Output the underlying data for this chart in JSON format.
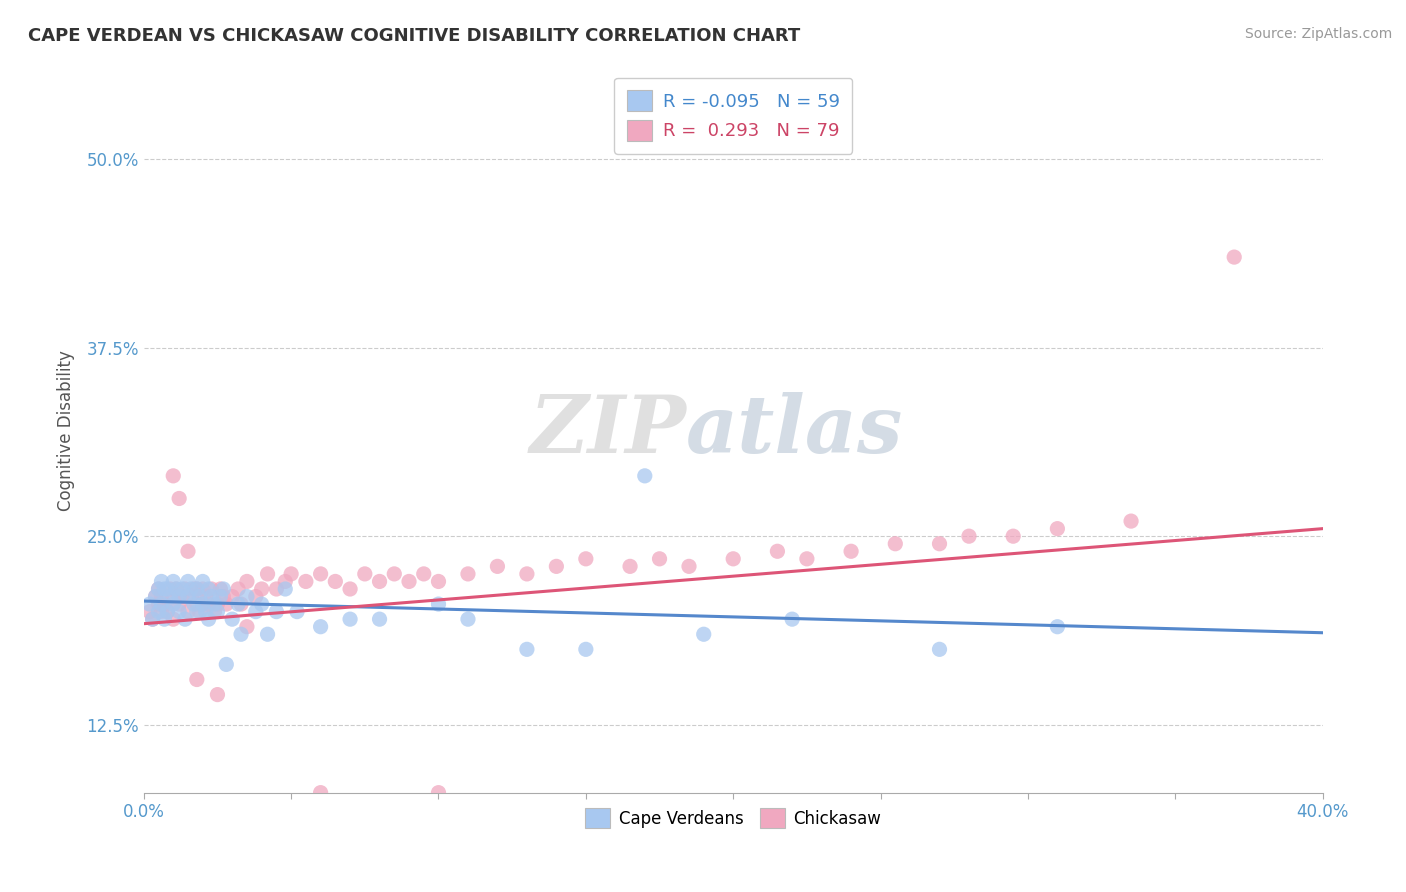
{
  "title": "CAPE VERDEAN VS CHICKASAW COGNITIVE DISABILITY CORRELATION CHART",
  "source": "Source: ZipAtlas.com",
  "xlabel": "",
  "ylabel": "Cognitive Disability",
  "xlim": [
    0.0,
    0.4
  ],
  "ylim": [
    0.08,
    0.56
  ],
  "yticks": [
    0.125,
    0.25,
    0.375,
    0.5
  ],
  "ytick_labels": [
    "12.5%",
    "25.0%",
    "37.5%",
    "50.0%"
  ],
  "legend_blue_r": "-0.095",
  "legend_blue_n": "59",
  "legend_pink_r": "0.293",
  "legend_pink_n": "79",
  "blue_color": "#A8C8F0",
  "pink_color": "#F0A8C0",
  "blue_line_color": "#5588CC",
  "pink_line_color": "#DD5577",
  "watermark_zip": "ZIP",
  "watermark_atlas": "atlas",
  "background_color": "#FFFFFF",
  "blue_scatter_x": [
    0.002,
    0.003,
    0.004,
    0.005,
    0.005,
    0.006,
    0.006,
    0.007,
    0.007,
    0.008,
    0.008,
    0.009,
    0.01,
    0.01,
    0.011,
    0.012,
    0.012,
    0.013,
    0.014,
    0.015,
    0.015,
    0.016,
    0.017,
    0.018,
    0.018,
    0.019,
    0.02,
    0.02,
    0.021,
    0.022,
    0.022,
    0.023,
    0.024,
    0.025,
    0.026,
    0.027,
    0.028,
    0.03,
    0.032,
    0.033,
    0.035,
    0.038,
    0.04,
    0.042,
    0.045,
    0.048,
    0.052,
    0.06,
    0.07,
    0.08,
    0.1,
    0.11,
    0.13,
    0.15,
    0.17,
    0.19,
    0.22,
    0.27,
    0.31
  ],
  "blue_scatter_y": [
    0.205,
    0.195,
    0.21,
    0.215,
    0.2,
    0.22,
    0.205,
    0.195,
    0.215,
    0.2,
    0.215,
    0.21,
    0.205,
    0.22,
    0.215,
    0.2,
    0.21,
    0.215,
    0.195,
    0.22,
    0.21,
    0.215,
    0.205,
    0.2,
    0.215,
    0.21,
    0.205,
    0.22,
    0.2,
    0.215,
    0.195,
    0.21,
    0.205,
    0.2,
    0.21,
    0.215,
    0.165,
    0.195,
    0.205,
    0.185,
    0.21,
    0.2,
    0.205,
    0.185,
    0.2,
    0.215,
    0.2,
    0.19,
    0.195,
    0.195,
    0.205,
    0.195,
    0.175,
    0.175,
    0.29,
    0.185,
    0.195,
    0.175,
    0.19
  ],
  "pink_scatter_x": [
    0.002,
    0.003,
    0.004,
    0.005,
    0.005,
    0.006,
    0.006,
    0.007,
    0.008,
    0.009,
    0.01,
    0.01,
    0.011,
    0.012,
    0.013,
    0.014,
    0.015,
    0.016,
    0.017,
    0.018,
    0.018,
    0.019,
    0.02,
    0.02,
    0.021,
    0.022,
    0.023,
    0.024,
    0.025,
    0.026,
    0.027,
    0.028,
    0.03,
    0.032,
    0.033,
    0.035,
    0.038,
    0.04,
    0.042,
    0.045,
    0.048,
    0.05,
    0.055,
    0.06,
    0.065,
    0.07,
    0.075,
    0.08,
    0.085,
    0.09,
    0.095,
    0.1,
    0.11,
    0.12,
    0.13,
    0.14,
    0.15,
    0.165,
    0.175,
    0.185,
    0.2,
    0.215,
    0.225,
    0.24,
    0.255,
    0.27,
    0.28,
    0.295,
    0.31,
    0.335,
    0.01,
    0.012,
    0.015,
    0.018,
    0.025,
    0.035,
    0.06,
    0.1,
    0.37
  ],
  "pink_scatter_y": [
    0.2,
    0.195,
    0.21,
    0.205,
    0.215,
    0.2,
    0.21,
    0.205,
    0.2,
    0.215,
    0.21,
    0.195,
    0.215,
    0.205,
    0.21,
    0.215,
    0.2,
    0.21,
    0.215,
    0.205,
    0.215,
    0.2,
    0.205,
    0.215,
    0.21,
    0.205,
    0.215,
    0.2,
    0.205,
    0.215,
    0.21,
    0.205,
    0.21,
    0.215,
    0.205,
    0.22,
    0.21,
    0.215,
    0.225,
    0.215,
    0.22,
    0.225,
    0.22,
    0.225,
    0.22,
    0.215,
    0.225,
    0.22,
    0.225,
    0.22,
    0.225,
    0.22,
    0.225,
    0.23,
    0.225,
    0.23,
    0.235,
    0.23,
    0.235,
    0.23,
    0.235,
    0.24,
    0.235,
    0.24,
    0.245,
    0.245,
    0.25,
    0.25,
    0.255,
    0.26,
    0.29,
    0.275,
    0.24,
    0.155,
    0.145,
    0.19,
    0.08,
    0.08,
    0.435
  ],
  "blue_line_x0": 0.0,
  "blue_line_y0": 0.207,
  "blue_line_x1": 0.4,
  "blue_line_y1": 0.186,
  "pink_line_x0": 0.0,
  "pink_line_y0": 0.192,
  "pink_line_x1": 0.4,
  "pink_line_y1": 0.255
}
